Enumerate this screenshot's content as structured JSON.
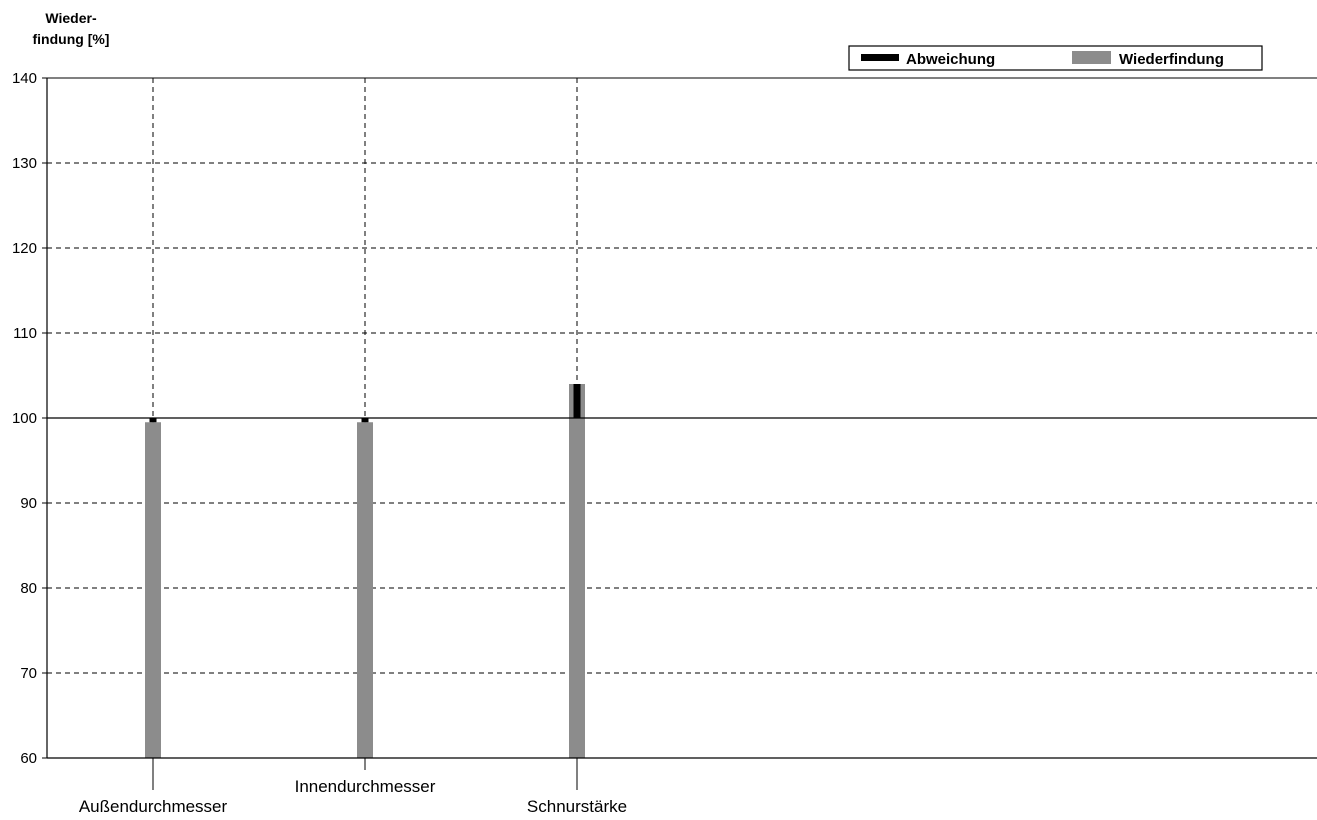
{
  "chart_data": {
    "type": "bar",
    "ylabel_lines": [
      "Wieder-",
      "findung [%]"
    ],
    "categories": [
      "Außendurchmesser",
      "Innendurchmesser",
      "Schnurstärke"
    ],
    "series": [
      {
        "name": "Wiederfindung",
        "values": [
          99.5,
          99.5,
          104.0
        ],
        "color": "#8c8c8c"
      },
      {
        "name": "Abweichung",
        "values": [
          -0.5,
          -0.5,
          4.0
        ],
        "color": "#000000"
      }
    ],
    "reference_line": 100,
    "ylim": [
      60,
      140
    ],
    "yticks": [
      60,
      70,
      80,
      90,
      100,
      110,
      120,
      130,
      140
    ],
    "grid": true,
    "legend_position": "top-right",
    "legend_order": [
      "Abweichung",
      "Wiederfindung"
    ]
  }
}
